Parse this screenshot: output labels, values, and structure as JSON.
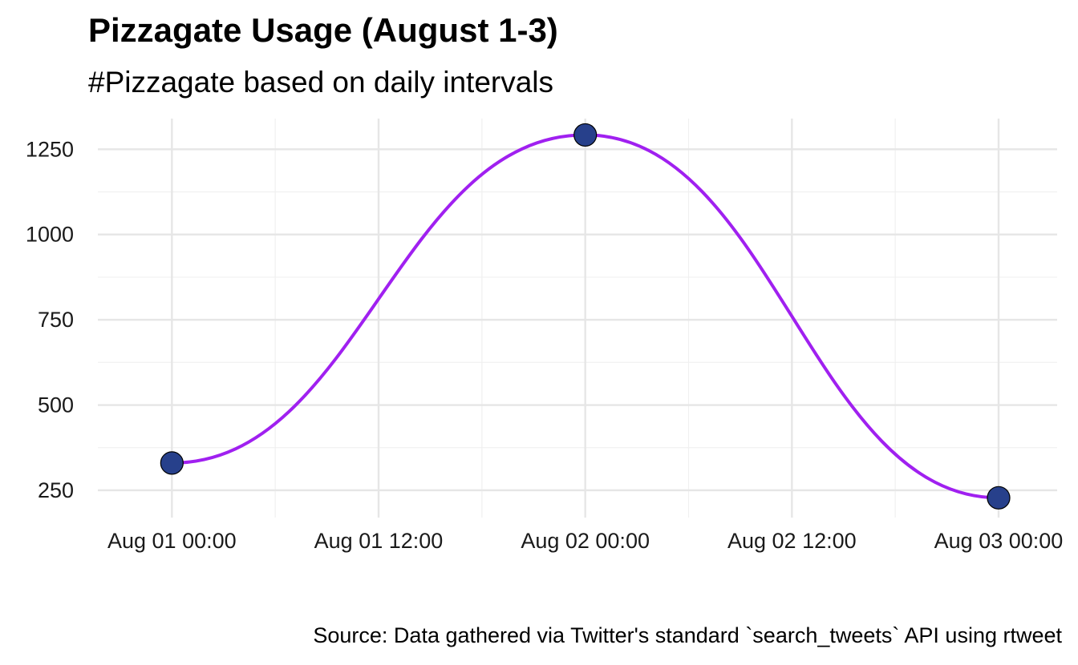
{
  "chart_data": {
    "type": "line",
    "title": "Pizzagate Usage (August 1-3)",
    "subtitle": "#Pizzagate based on daily intervals",
    "caption": "Source: Data gathered via Twitter's standard `search_tweets` API using rtweet",
    "xlabel": "",
    "ylabel": "",
    "x_ticks": [
      "Aug 01 00:00",
      "Aug 01 12:00",
      "Aug 02 00:00",
      "Aug 02 12:00",
      "Aug 03 00:00"
    ],
    "x_hours": [
      0,
      12,
      24,
      36,
      48
    ],
    "y_ticks": [
      250,
      500,
      750,
      1000,
      1250
    ],
    "ylim": [
      170,
      1340
    ],
    "xlim_hours": [
      -4.3,
      51.4
    ],
    "grid": true,
    "smooth": true,
    "line_color": "#a020f0",
    "point_color": "#27408b",
    "series": [
      {
        "x": [
          "Aug 01 00:00",
          "Aug 02 00:00",
          "Aug 03 00:00"
        ],
        "x_hours": [
          0,
          24,
          48
        ],
        "values": [
          330,
          1292,
          228
        ]
      }
    ]
  }
}
